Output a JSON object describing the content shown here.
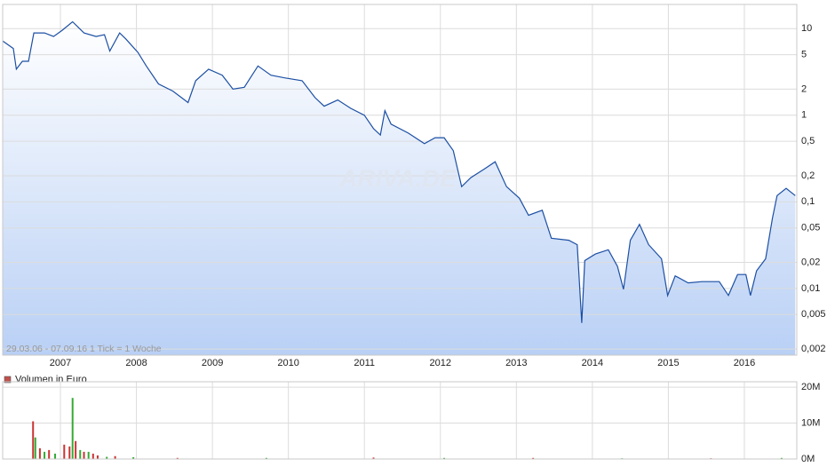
{
  "chart_data": [
    {
      "type": "line",
      "x": [
        2006.24,
        2006.38,
        2006.42,
        2006.5,
        2006.58,
        2006.65,
        2006.79,
        2006.91,
        2007.02,
        2007.16,
        2007.31,
        2007.47,
        2007.58,
        2007.65,
        2007.78,
        2007.86,
        2008.02,
        2008.13,
        2008.29,
        2008.48,
        2008.68,
        2008.78,
        2008.95,
        2009.13,
        2009.27,
        2009.42,
        2009.6,
        2009.77,
        2009.95,
        2010.18,
        2010.35,
        2010.47,
        2010.65,
        2010.82,
        2011.0,
        2011.12,
        2011.21,
        2011.27,
        2011.35,
        2011.58,
        2011.79,
        2011.93,
        2012.05,
        2012.17,
        2012.28,
        2012.4,
        2012.58,
        2012.72,
        2012.87,
        2013.04,
        2013.16,
        2013.34,
        2013.46,
        2013.69,
        2013.8,
        2013.86,
        2013.9,
        2014.04,
        2014.21,
        2014.33,
        2014.41,
        2014.5,
        2014.62,
        2014.74,
        2014.91,
        2014.99,
        2015.09,
        2015.26,
        2015.44,
        2015.67,
        2015.79,
        2015.91,
        2016.02,
        2016.08,
        2016.16,
        2016.28,
        2016.37,
        2016.43,
        2016.55,
        2016.67
      ],
      "values": [
        7.2,
        5.9,
        3.4,
        4.2,
        4.2,
        8.9,
        8.9,
        8.1,
        9.5,
        12,
        8.9,
        8.1,
        8.5,
        5.5,
        8.9,
        7.6,
        5.3,
        3.7,
        2.3,
        1.9,
        1.4,
        2.5,
        3.4,
        2.9,
        2.0,
        2.1,
        3.7,
        2.9,
        2.7,
        2.5,
        1.6,
        1.27,
        1.5,
        1.2,
        1.0,
        0.7,
        0.59,
        1.13,
        0.79,
        0.62,
        0.47,
        0.55,
        0.55,
        0.39,
        0.15,
        0.19,
        0.24,
        0.29,
        0.15,
        0.11,
        0.07,
        0.08,
        0.038,
        0.036,
        0.032,
        0.004,
        0.021,
        0.025,
        0.028,
        0.018,
        0.0098,
        0.036,
        0.055,
        0.032,
        0.022,
        0.0083,
        0.014,
        0.0116,
        0.012,
        0.012,
        0.0083,
        0.0145,
        0.0145,
        0.0083,
        0.016,
        0.022,
        0.065,
        0.118,
        0.143,
        0.118
      ],
      "color": "#1c4fa3",
      "ylog": true,
      "ylim": [
        0.0017,
        19
      ],
      "yticks": [
        10,
        5,
        2,
        1,
        {
          "value": 0.5,
          "label": "0,5"
        },
        {
          "value": 0.2,
          "label": "0,2"
        },
        {
          "value": 0.1,
          "label": "0,1"
        },
        {
          "value": 0.05,
          "label": "0,05"
        },
        {
          "value": 0.02,
          "label": "0,02"
        },
        {
          "value": 0.01,
          "label": "0,01"
        },
        {
          "value": 0.005,
          "label": "0,005"
        },
        {
          "value": 0.002,
          "label": "0,002"
        }
      ],
      "xlim": [
        2006.24,
        2016.69
      ],
      "xticks": [
        2007,
        2008,
        2009,
        2010,
        2011,
        2012,
        2013,
        2014,
        2015,
        2016
      ],
      "grid": true,
      "annotation": "29.03.06 - 07.09.16   1 Tick = 1 Woche",
      "watermark": "ARIVA.DE"
    },
    {
      "type": "bar",
      "x": [
        2006.64,
        2006.67,
        2006.73,
        2006.79,
        2006.85,
        2006.93,
        2007.05,
        2007.12,
        2007.16,
        2007.2,
        2007.26,
        2007.31,
        2007.37,
        2007.43,
        2007.49,
        2007.61,
        2007.72,
        2007.96,
        2008.54,
        2009.71,
        2011.12,
        2012.05,
        2013.22,
        2014.39,
        2015.56,
        2016.49
      ],
      "series": [
        {
          "name": "Volumen in Euro",
          "color": "#c0504d",
          "values": [
            10500000,
            6000000,
            3000000,
            2000000,
            2500000,
            1500000,
            4000000,
            3500000,
            17000000,
            5000000,
            2500000,
            2000000,
            2000000,
            1500000,
            1000000,
            600000,
            800000,
            500000,
            300000,
            300000,
            400000,
            300000,
            300000,
            200000,
            200000,
            300000
          ],
          "bar_colors": [
            "#cc3333",
            "#33aa33",
            "#cc3333",
            "#33aa33",
            "#cc3333",
            "#33aa33",
            "#cc3333",
            "#cc3333",
            "#33aa33",
            "#cc3333",
            "#33aa33",
            "#cc3333",
            "#33aa33",
            "#cc3333",
            "#cc3333",
            "#33aa33",
            "#cc3333",
            "#33aa33",
            "#cc3333",
            "#33aa33",
            "#cc3333",
            "#33aa33",
            "#cc3333",
            "#33aa33",
            "#cc3333",
            "#33aa33"
          ]
        }
      ],
      "xlim": [
        2006.24,
        2016.69
      ],
      "ylim": [
        0,
        21500000
      ],
      "yticks": [
        {
          "value": 20000000,
          "label": "20M"
        },
        {
          "value": 10000000,
          "label": "10M"
        },
        {
          "value": 0,
          "label": "0M"
        }
      ],
      "grid": true
    }
  ]
}
